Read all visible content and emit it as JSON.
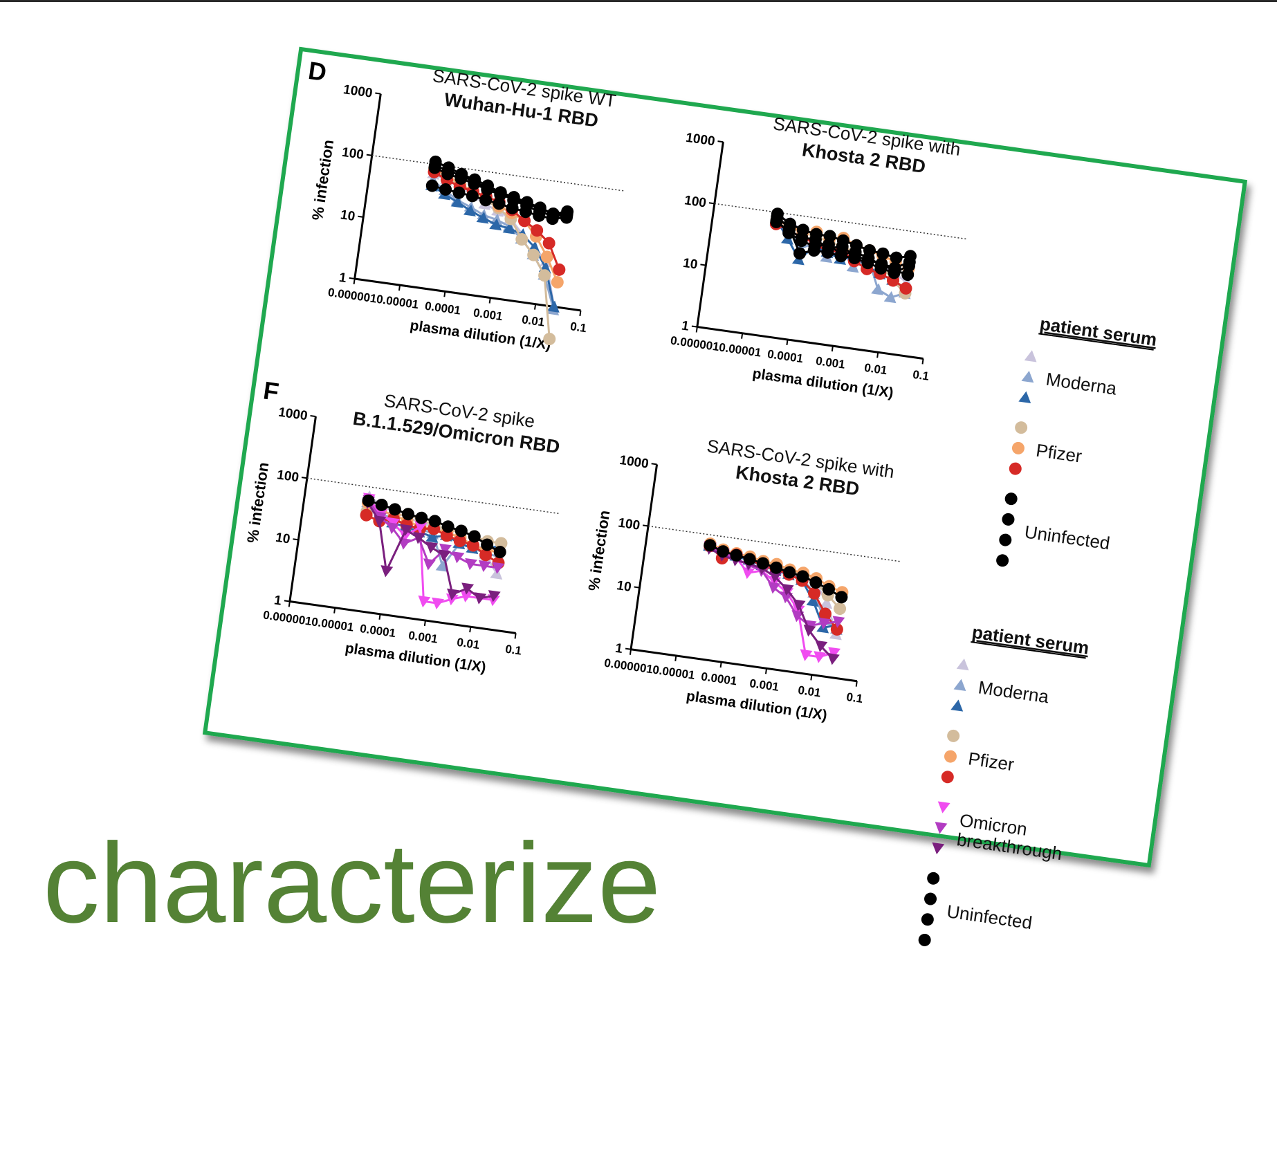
{
  "caption": "characterize",
  "colors": {
    "border": "#1fa84f",
    "caption": "#548235",
    "moderna": [
      "#c9c3dc",
      "#8ca6cf",
      "#2c67a8"
    ],
    "pfizer": [
      "#d3bc9c",
      "#f5a56a",
      "#d62a26"
    ],
    "omicron_breakthrough": [
      "#f04cf0",
      "#b23cc2",
      "#7a1f7e"
    ],
    "uninfected": "#000000"
  },
  "panels": [
    {
      "letter": "D"
    },
    {
      "letter": "F"
    }
  ],
  "legends": [
    {
      "title": "patient serum",
      "groups": [
        {
          "label": "Moderna",
          "marker": "triangle-up",
          "colors": [
            "#c9c3dc",
            "#8ca6cf",
            "#2c67a8"
          ]
        },
        {
          "label": "Pfizer",
          "marker": "circle",
          "colors": [
            "#d3bc9c",
            "#f5a56a",
            "#d62a26"
          ]
        },
        {
          "label": "Uninfected",
          "marker": "circle",
          "colors": [
            "#000000",
            "#000000",
            "#000000",
            "#000000"
          ]
        }
      ]
    },
    {
      "title": "patient serum",
      "groups": [
        {
          "label": "Moderna",
          "marker": "triangle-up",
          "colors": [
            "#c9c3dc",
            "#8ca6cf",
            "#2c67a8"
          ]
        },
        {
          "label": "Pfizer",
          "marker": "circle",
          "colors": [
            "#d3bc9c",
            "#f5a56a",
            "#d62a26"
          ]
        },
        {
          "label": "Omicron\nbreakthrough",
          "marker": "triangle-down",
          "colors": [
            "#f04cf0",
            "#b23cc2",
            "#7a1f7e"
          ]
        },
        {
          "label": "Uninfected",
          "marker": "circle",
          "colors": [
            "#000000",
            "#000000",
            "#000000",
            "#000000"
          ]
        }
      ]
    }
  ],
  "chart_data": [
    {
      "type": "line",
      "panel": "D",
      "title": "SARS-CoV-2 spike WT",
      "subtitle": "Wuhan-Hu-1 RBD",
      "xlabel": "plasma dilution (1/X)",
      "ylabel": "% infection",
      "xscale": "log",
      "yscale": "log",
      "xlim": [
        1e-06,
        0.1
      ],
      "ylim": [
        1,
        1000
      ],
      "xticks": [
        "0.000001",
        "0.00001",
        "0.0001",
        "0.001",
        "0.01",
        "0.1"
      ],
      "yticks": [
        "1",
        "10",
        "100",
        "1000"
      ],
      "reference_line": 100,
      "x": [
        2.5e-05,
        5e-05,
        0.0001,
        0.0002,
        0.0004,
        0.0008,
        0.0016,
        0.0032,
        0.0064,
        0.0128,
        0.0256
      ],
      "series": [
        {
          "group": "Moderna",
          "marker": "triangle-up",
          "color": "#c9c3dc",
          "values": [
            70,
            60,
            50,
            40,
            30,
            25,
            20,
            12,
            8,
            5,
            1
          ]
        },
        {
          "group": "Moderna",
          "marker": "triangle-up",
          "color": "#8ca6cf",
          "values": [
            55,
            40,
            30,
            25,
            20,
            18,
            15,
            10,
            6,
            3,
            0.9
          ]
        },
        {
          "group": "Moderna",
          "marker": "triangle-up",
          "color": "#2c67a8",
          "values": [
            45,
            35,
            28,
            22,
            18,
            15,
            14,
            12,
            8,
            4,
            1
          ]
        },
        {
          "group": "Pfizer",
          "marker": "circle",
          "color": "#d3bc9c",
          "values": [
            80,
            65,
            55,
            45,
            35,
            28,
            20,
            10,
            6,
            3,
            0.3
          ]
        },
        {
          "group": "Pfizer",
          "marker": "circle",
          "color": "#f5a56a",
          "values": [
            85,
            70,
            55,
            45,
            38,
            30,
            25,
            20,
            12,
            6,
            2.5
          ]
        },
        {
          "group": "Pfizer",
          "marker": "circle",
          "color": "#d62a26",
          "values": [
            75,
            60,
            50,
            45,
            40,
            35,
            28,
            20,
            15,
            10,
            4
          ]
        },
        {
          "group": "Uninfected",
          "marker": "circle",
          "color": "#000000",
          "values": [
            110,
            95,
            80,
            70,
            60,
            50,
            45,
            40,
            35,
            30,
            32
          ]
        },
        {
          "group": "Uninfected",
          "marker": "circle",
          "color": "#000000",
          "values": [
            95,
            85,
            75,
            65,
            55,
            50,
            40,
            35,
            30,
            28,
            30
          ]
        },
        {
          "group": "Uninfected",
          "marker": "circle",
          "color": "#000000",
          "values": [
            45,
            42,
            40,
            38,
            35,
            33,
            30,
            28,
            26,
            25,
            28
          ]
        },
        {
          "group": "Uninfected",
          "marker": "circle",
          "color": "#000000",
          "values": [
            88,
            75,
            68,
            60,
            52,
            46,
            42,
            38,
            34,
            30,
            35
          ]
        }
      ]
    },
    {
      "type": "line",
      "panel": "D",
      "title": "SARS-CoV-2 spike with",
      "subtitle": "Khosta 2 RBD",
      "xlabel": "plasma dilution (1/X)",
      "ylabel": "",
      "xscale": "log",
      "yscale": "log",
      "xlim": [
        1e-06,
        0.1
      ],
      "ylim": [
        1,
        1000
      ],
      "xticks": [
        "0.000001",
        "0.00001",
        "0.0001",
        "0.001",
        "0.01",
        "0.1"
      ],
      "yticks": [
        "1",
        "10",
        "100",
        "1000"
      ],
      "reference_line": 100,
      "x": [
        2.5e-05,
        5e-05,
        0.0001,
        0.0002,
        0.0004,
        0.0008,
        0.0016,
        0.0032,
        0.0064,
        0.0128,
        0.0256
      ],
      "series": [
        {
          "group": "Moderna",
          "marker": "triangle-up",
          "color": "#c9c3dc",
          "values": [
            90,
            75,
            60,
            50,
            45,
            40,
            35,
            30,
            25,
            20,
            15
          ]
        },
        {
          "group": "Moderna",
          "marker": "triangle-up",
          "color": "#8ca6cf",
          "values": [
            70,
            55,
            30,
            40,
            25,
            35,
            20,
            30,
            10,
            8,
            10
          ]
        },
        {
          "group": "Moderna",
          "marker": "triangle-up",
          "color": "#2c67a8",
          "values": [
            75,
            40,
            20,
            35,
            30,
            25,
            30,
            22,
            18,
            15,
            12
          ]
        },
        {
          "group": "Pfizer",
          "marker": "circle",
          "color": "#d3bc9c",
          "values": [
            80,
            60,
            55,
            50,
            45,
            40,
            35,
            30,
            25,
            15,
            10
          ]
        },
        {
          "group": "Pfizer",
          "marker": "circle",
          "color": "#f5a56a",
          "values": [
            75,
            65,
            55,
            60,
            50,
            55,
            45,
            40,
            35,
            30,
            25
          ]
        },
        {
          "group": "Pfizer",
          "marker": "circle",
          "color": "#d62a26",
          "values": [
            65,
            55,
            45,
            40,
            30,
            35,
            25,
            20,
            18,
            15,
            12
          ]
        },
        {
          "group": "Uninfected",
          "marker": "circle",
          "color": "#000000",
          "values": [
            95,
            70,
            60,
            55,
            55,
            50,
            45,
            40,
            38,
            35,
            40
          ]
        },
        {
          "group": "Uninfected",
          "marker": "circle",
          "color": "#000000",
          "values": [
            85,
            60,
            25,
            30,
            30,
            28,
            28,
            25,
            22,
            20,
            28
          ]
        },
        {
          "group": "Uninfected",
          "marker": "circle",
          "color": "#000000",
          "values": [
            75,
            50,
            40,
            35,
            40,
            30,
            35,
            30,
            25,
            22,
            20
          ]
        },
        {
          "group": "Uninfected",
          "marker": "circle",
          "color": "#000000",
          "values": [
            70,
            55,
            45,
            45,
            35,
            40,
            30,
            28,
            26,
            24,
            32
          ]
        }
      ]
    },
    {
      "type": "line",
      "panel": "F",
      "title": "SARS-CoV-2 spike",
      "subtitle": "B.1.1.529/Omicron RBD",
      "xlabel": "plasma dilution (1/X)",
      "ylabel": "% infection",
      "xscale": "log",
      "yscale": "log",
      "xlim": [
        1e-06,
        0.1
      ],
      "ylim": [
        1,
        1000
      ],
      "xticks": [
        "0.000001",
        "0.00001",
        "0.0001",
        "0.001",
        "0.01",
        "0.1"
      ],
      "yticks": [
        "1",
        "10",
        "100",
        "1000"
      ],
      "reference_line": 100,
      "x": [
        2.5e-05,
        5e-05,
        0.0001,
        0.0002,
        0.0004,
        0.0008,
        0.0016,
        0.0032,
        0.0064,
        0.0128,
        0.0256
      ],
      "series": [
        {
          "group": "Moderna",
          "marker": "triangle-up",
          "color": "#c9c3dc",
          "values": [
            70,
            55,
            45,
            40,
            35,
            32,
            28,
            25,
            20,
            15,
            8
          ]
        },
        {
          "group": "Moderna",
          "marker": "triangle-up",
          "color": "#8ca6cf",
          "values": [
            55,
            40,
            35,
            30,
            28,
            25,
            8,
            20,
            18,
            16,
            15
          ]
        },
        {
          "group": "Moderna",
          "marker": "triangle-up",
          "color": "#2c67a8",
          "values": [
            50,
            35,
            30,
            28,
            25,
            22,
            25,
            20,
            18,
            20,
            22
          ]
        },
        {
          "group": "Pfizer",
          "marker": "circle",
          "color": "#d3bc9c",
          "values": [
            40,
            45,
            40,
            45,
            38,
            35,
            30,
            32,
            28,
            25,
            25
          ]
        },
        {
          "group": "Pfizer",
          "marker": "circle",
          "color": "#f5a56a",
          "values": [
            55,
            45,
            40,
            35,
            30,
            30,
            28,
            25,
            20,
            18,
            18
          ]
        },
        {
          "group": "Pfizer",
          "marker": "circle",
          "color": "#d62a26",
          "values": [
            35,
            30,
            35,
            30,
            28,
            30,
            25,
            22,
            20,
            15,
            12
          ]
        },
        {
          "group": "Omicron breakthrough",
          "marker": "triangle-down",
          "color": "#f04cf0",
          "values": [
            65,
            40,
            30,
            20,
            30,
            2,
            2,
            2.5,
            3,
            3,
            3
          ]
        },
        {
          "group": "Omicron breakthrough",
          "marker": "triangle-down",
          "color": "#b23cc2",
          "values": [
            60,
            35,
            25,
            15,
            20,
            8,
            15,
            12,
            10,
            10,
            10
          ]
        },
        {
          "group": "Omicron breakthrough",
          "marker": "triangle-down",
          "color": "#7a1f7e",
          "values": [
            55,
            30,
            5,
            25,
            20,
            15,
            12,
            3,
            4,
            3,
            3.5
          ]
        },
        {
          "group": "Uninfected",
          "marker": "circle",
          "color": "#000000",
          "values": [
            60,
            55,
            50,
            45,
            42,
            40,
            35,
            32,
            28,
            22,
            18
          ]
        }
      ]
    },
    {
      "type": "line",
      "panel": "F",
      "title": "SARS-CoV-2 spike with",
      "subtitle": "Khosta 2 RBD",
      "xlabel": "plasma dilution (1/X)",
      "ylabel": "% infection",
      "xscale": "log",
      "yscale": "log",
      "xlim": [
        1e-06,
        0.1
      ],
      "ylim": [
        1,
        1000
      ],
      "xticks": [
        "0.000001",
        "0.00001",
        "0.0001",
        "0.001",
        "0.01",
        "0.1"
      ],
      "yticks": [
        "1",
        "10",
        "100",
        "1000"
      ],
      "reference_line": 100,
      "x": [
        2.5e-05,
        5e-05,
        0.0001,
        0.0002,
        0.0004,
        0.0008,
        0.0016,
        0.0032,
        0.0064,
        0.0128,
        0.0256
      ],
      "series": [
        {
          "group": "Moderna",
          "marker": "triangle-up",
          "color": "#c9c3dc",
          "values": [
            70,
            62,
            58,
            55,
            50,
            45,
            40,
            35,
            30,
            15,
            5
          ]
        },
        {
          "group": "Moderna",
          "marker": "triangle-up",
          "color": "#8ca6cf",
          "values": [
            68,
            58,
            55,
            50,
            45,
            40,
            38,
            32,
            20,
            8,
            6
          ]
        },
        {
          "group": "Moderna",
          "marker": "triangle-up",
          "color": "#2c67a8",
          "values": [
            65,
            55,
            52,
            48,
            42,
            38,
            35,
            30,
            15,
            6,
            7
          ]
        },
        {
          "group": "Pfizer",
          "marker": "circle",
          "color": "#d3bc9c",
          "values": [
            70,
            60,
            55,
            52,
            48,
            45,
            40,
            38,
            30,
            20,
            13
          ]
        },
        {
          "group": "Pfizer",
          "marker": "circle",
          "color": "#f5a56a",
          "values": [
            72,
            62,
            58,
            55,
            50,
            48,
            42,
            40,
            35,
            28,
            24
          ]
        },
        {
          "group": "Pfizer",
          "marker": "circle",
          "color": "#d62a26",
          "values": [
            66,
            45,
            55,
            50,
            42,
            40,
            35,
            30,
            20,
            10,
            6
          ]
        },
        {
          "group": "Omicron breakthrough",
          "marker": "triangle-down",
          "color": "#f04cf0",
          "values": [
            62,
            55,
            50,
            30,
            35,
            25,
            18,
            10,
            2,
            2,
            2.5
          ]
        },
        {
          "group": "Omicron breakthrough",
          "marker": "triangle-down",
          "color": "#b23cc2",
          "values": [
            64,
            52,
            48,
            40,
            35,
            20,
            15,
            8,
            6,
            7,
            8
          ]
        },
        {
          "group": "Omicron breakthrough",
          "marker": "triangle-down",
          "color": "#7a1f7e",
          "values": [
            60,
            50,
            45,
            42,
            38,
            30,
            20,
            12,
            5,
            3,
            2
          ]
        },
        {
          "group": "Uninfected",
          "marker": "circle",
          "color": "#000000",
          "values": [
            68,
            58,
            54,
            50,
            46,
            42,
            38,
            35,
            30,
            25,
            20
          ]
        }
      ]
    }
  ]
}
